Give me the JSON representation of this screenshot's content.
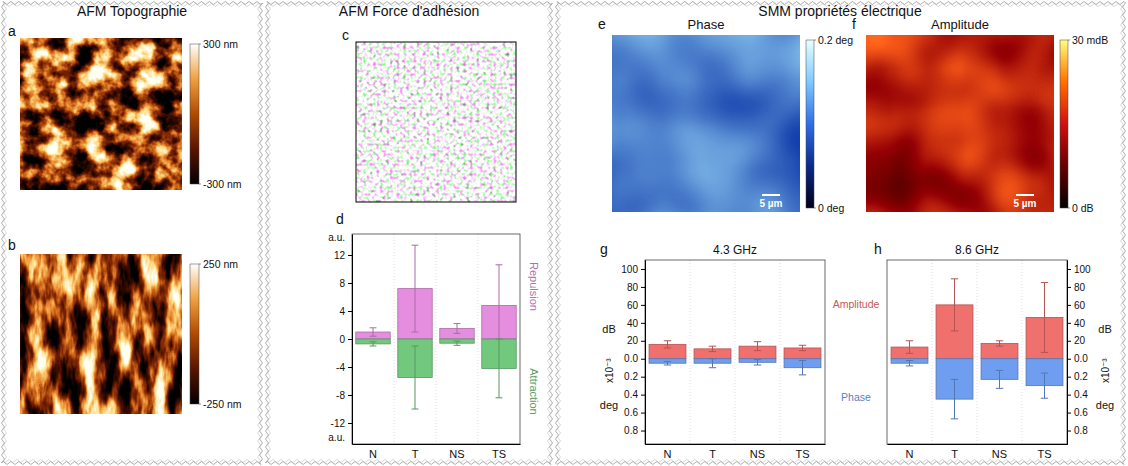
{
  "sections": [
    "AFM Topographie",
    "AFM Force d'adhésion",
    "SMM propriétés électrique"
  ],
  "chart_data": [
    {
      "type": "image",
      "panel": "a",
      "colorbar": {
        "lim": [
          -300,
          300
        ],
        "ticks": [
          {
            "value": 300,
            "label": "300 nm"
          },
          {
            "value": -300,
            "label": "-300 nm"
          }
        ]
      }
    },
    {
      "type": "image",
      "panel": "b",
      "colorbar": {
        "lim": [
          -250,
          250
        ],
        "ticks": [
          {
            "value": 250,
            "label": "250 nm"
          },
          {
            "value": -250,
            "label": "-250 nm"
          }
        ]
      }
    },
    {
      "type": "image",
      "panel": "c"
    },
    {
      "type": "bar",
      "panel": "d",
      "y_label": "a.u.",
      "categories": [
        "N",
        "T",
        "NS",
        "TS"
      ],
      "ylim": [
        -15,
        15
      ],
      "yticks": [
        -12,
        -8,
        -4,
        0,
        4,
        8,
        12
      ],
      "legend": "right",
      "series": [
        {
          "name": "Repulsion",
          "color": "#e58ee0",
          "values": [
            1.0,
            7.2,
            1.5,
            4.8
          ],
          "errors": [
            0.6,
            6.2,
            0.7,
            5.8
          ]
        },
        {
          "name": "Attraction",
          "color": "#72c97e",
          "values": [
            -0.7,
            -5.5,
            -0.6,
            -4.2
          ],
          "errors": [
            0.3,
            4.5,
            0.3,
            4.2
          ]
        }
      ]
    },
    {
      "type": "image",
      "panel": "e",
      "title": "Phase",
      "scale_bar": "5 µm",
      "colorbar": {
        "lim": [
          0,
          0.2
        ],
        "ticks": [
          {
            "value": 0.2,
            "label": "0.2 deg"
          },
          {
            "value": 0,
            "label": "0 deg"
          }
        ]
      }
    },
    {
      "type": "image",
      "panel": "f",
      "title": "Amplitude",
      "scale_bar": "5 µm",
      "colorbar": {
        "lim": [
          0,
          30
        ],
        "ticks": [
          {
            "value": 30,
            "label": "30 mdB"
          },
          {
            "value": 0,
            "label": "0 dB"
          }
        ]
      }
    },
    {
      "type": "bar",
      "panel": "g",
      "title": "4.3 GHz",
      "categories": [
        "N",
        "T",
        "NS",
        "TS"
      ],
      "ylim": [
        -95,
        110
      ],
      "yticks": [
        20,
        40,
        60,
        80,
        100
      ],
      "y_label": "dB",
      "y2lim": [
        0.95,
        -1.1
      ],
      "y2ticks": [
        {
          "value": 0,
          "label": "0.0"
        },
        0.2,
        0.4,
        0.6,
        0.8
      ],
      "y2_label": "deg",
      "y2_multiplier": "x10⁻³",
      "series": [
        {
          "color": "#f0706e",
          "values": [
            16,
            11,
            14,
            12
          ],
          "errors": [
            4,
            3,
            5,
            3
          ]
        },
        {
          "color": "#6f9ef0",
          "axis": "y2",
          "values": [
            0.05,
            0.05,
            0.04,
            0.1
          ],
          "errors": [
            0.02,
            0.05,
            0.03,
            0.08
          ]
        }
      ]
    },
    {
      "type": "bar",
      "panel": "h",
      "title": "8.6 GHz",
      "categories": [
        "N",
        "T",
        "NS",
        "TS"
      ],
      "legend": "left",
      "ylim": [
        -95,
        110
      ],
      "yticks": [
        20,
        40,
        60,
        80,
        100
      ],
      "y_label": "dB",
      "y2lim": [
        0.95,
        -1.1
      ],
      "y2ticks": [
        {
          "value": 0,
          "label": "0.0"
        },
        0.2,
        0.4,
        0.6,
        0.8
      ],
      "y2_label": "deg",
      "y2_multiplier": "x10⁻³",
      "series": [
        {
          "name": "Amplitude",
          "color": "#f0706e",
          "values": [
            13,
            60,
            17,
            46
          ],
          "errors": [
            7,
            29,
            3,
            39
          ]
        },
        {
          "name": "Phase",
          "color": "#6f9ef0",
          "axis": "y2",
          "values": [
            0.05,
            0.45,
            0.23,
            0.3
          ],
          "errors": [
            0.03,
            0.22,
            0.1,
            0.14
          ]
        }
      ]
    }
  ]
}
